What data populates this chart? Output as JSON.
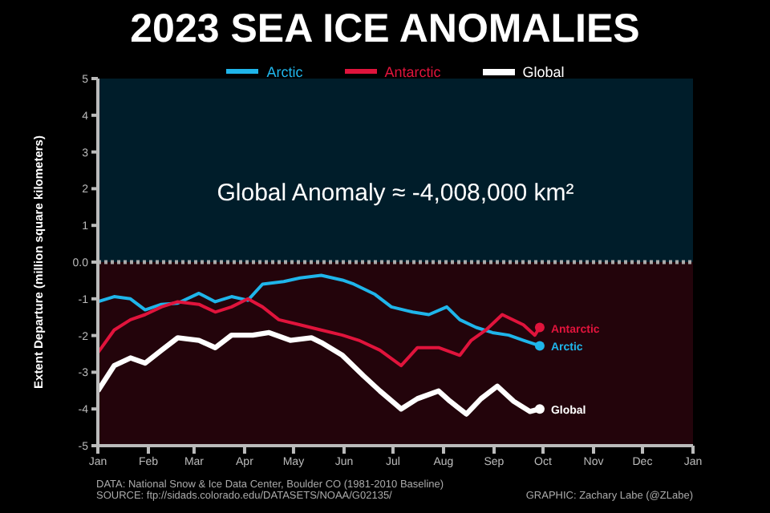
{
  "chart_data": {
    "type": "line",
    "title": "2023 SEA ICE ANOMALIES",
    "ylabel": "Extent Departure (million square kilometers)",
    "xlim": [
      "2023-01-01",
      "2024-01-01"
    ],
    "xticks": [
      {
        "value": "2023-01-01",
        "label": "Jan"
      },
      {
        "value": "2023-02-01",
        "label": "Feb"
      },
      {
        "value": "2023-03-01",
        "label": "Mar"
      },
      {
        "value": "2023-04-01",
        "label": "Apr"
      },
      {
        "value": "2023-05-01",
        "label": "May"
      },
      {
        "value": "2023-06-01",
        "label": "Jun"
      },
      {
        "value": "2023-07-01",
        "label": "Jul"
      },
      {
        "value": "2023-08-01",
        "label": "Aug"
      },
      {
        "value": "2023-09-01",
        "label": "Sep"
      },
      {
        "value": "2023-10-01",
        "label": "Oct"
      },
      {
        "value": "2023-11-01",
        "label": "Nov"
      },
      {
        "value": "2023-12-01",
        "label": "Dec"
      },
      {
        "value": "2024-01-01",
        "label": "Jan"
      }
    ],
    "ylim": [
      -5,
      5
    ],
    "yticks": [
      -5,
      -4,
      -3,
      -2,
      -1,
      {
        "value": 0,
        "label": "0.0"
      },
      1,
      2,
      3,
      4,
      5
    ],
    "legend": "top",
    "grid": false,
    "marker": "none",
    "line_style": "solid",
    "series": [
      {
        "name": "Arctic",
        "color": "#1fb5ea",
        "x": [
          "2023-01-01",
          "2023-01-11",
          "2023-01-21",
          "2023-01-30",
          "2023-02-09",
          "2023-02-19",
          "2023-03-04",
          "2023-03-14",
          "2023-03-24",
          "2023-04-03",
          "2023-04-12",
          "2023-04-25",
          "2023-05-05",
          "2023-05-18",
          "2023-05-31",
          "2023-06-07",
          "2023-06-20",
          "2023-06-30",
          "2023-07-13",
          "2023-07-23",
          "2023-08-03",
          "2023-08-11",
          "2023-08-21",
          "2023-08-31",
          "2023-09-10",
          "2023-09-19",
          "2023-09-29"
        ],
        "values": [
          -1.08,
          -0.94,
          -1.0,
          -1.3,
          -1.15,
          -1.12,
          -0.85,
          -1.08,
          -0.94,
          -1.04,
          -0.6,
          -0.53,
          -0.43,
          -0.36,
          -0.49,
          -0.6,
          -0.88,
          -1.22,
          -1.36,
          -1.43,
          -1.22,
          -1.57,
          -1.78,
          -1.92,
          -1.99,
          -2.13,
          -2.28
        ]
      },
      {
        "name": "Antarctic",
        "color": "#e0143c",
        "x": [
          "2023-01-01",
          "2023-01-11",
          "2023-01-21",
          "2023-01-30",
          "2023-02-09",
          "2023-02-19",
          "2023-03-04",
          "2023-03-14",
          "2023-03-24",
          "2023-04-03",
          "2023-04-12",
          "2023-04-22",
          "2023-05-05",
          "2023-05-18",
          "2023-05-31",
          "2023-06-10",
          "2023-06-23",
          "2023-07-06",
          "2023-07-16",
          "2023-07-29",
          "2023-08-11",
          "2023-08-18",
          "2023-08-27",
          "2023-09-06",
          "2023-09-19",
          "2023-09-26",
          "2023-09-29"
        ],
        "values": [
          -2.47,
          -1.85,
          -1.57,
          -1.43,
          -1.22,
          -1.08,
          -1.15,
          -1.36,
          -1.22,
          -1.0,
          -1.22,
          -1.57,
          -1.71,
          -1.85,
          -1.99,
          -2.13,
          -2.4,
          -2.82,
          -2.33,
          -2.33,
          -2.54,
          -2.13,
          -1.85,
          -1.43,
          -1.71,
          -1.99,
          -1.78
        ]
      },
      {
        "name": "Global",
        "color": "#ffffff",
        "x": [
          "2023-01-01",
          "2023-01-11",
          "2023-01-21",
          "2023-01-30",
          "2023-02-09",
          "2023-02-19",
          "2023-03-04",
          "2023-03-14",
          "2023-03-24",
          "2023-04-06",
          "2023-04-16",
          "2023-04-29",
          "2023-05-12",
          "2023-05-18",
          "2023-05-31",
          "2023-06-13",
          "2023-06-23",
          "2023-07-06",
          "2023-07-16",
          "2023-07-29",
          "2023-08-05",
          "2023-08-15",
          "2023-08-24",
          "2023-09-03",
          "2023-09-13",
          "2023-09-23",
          "2023-09-29"
        ],
        "values": [
          -3.51,
          -2.82,
          -2.61,
          -2.75,
          -2.4,
          -2.06,
          -2.13,
          -2.33,
          -1.99,
          -1.99,
          -1.92,
          -2.13,
          -2.06,
          -2.19,
          -2.54,
          -3.1,
          -3.51,
          -4.0,
          -3.72,
          -3.51,
          -3.79,
          -4.14,
          -3.72,
          -3.38,
          -3.79,
          -4.07,
          -4.0
        ]
      }
    ],
    "bands": [
      {
        "axis": "y",
        "from": 0,
        "to": 5,
        "color": "#001d2a"
      },
      {
        "axis": "y",
        "from": -5,
        "to": 0,
        "color": "#23040b"
      }
    ],
    "ref_lines": [
      {
        "axis": "y",
        "value": 0,
        "color": "#aaaaaa",
        "line_style": "dotted"
      }
    ],
    "annotations": [
      "Global Anomaly ≈ -4,008,000 km²",
      "DATA: National Snow & Ice Data Center, Boulder CO (1981-2010 Baseline)",
      "SOURCE: ftp://sidads.colorado.edu/DATASETS/NOAA/G02135/",
      "GRAPHIC: Zachary Labe (@ZLabe)"
    ]
  }
}
